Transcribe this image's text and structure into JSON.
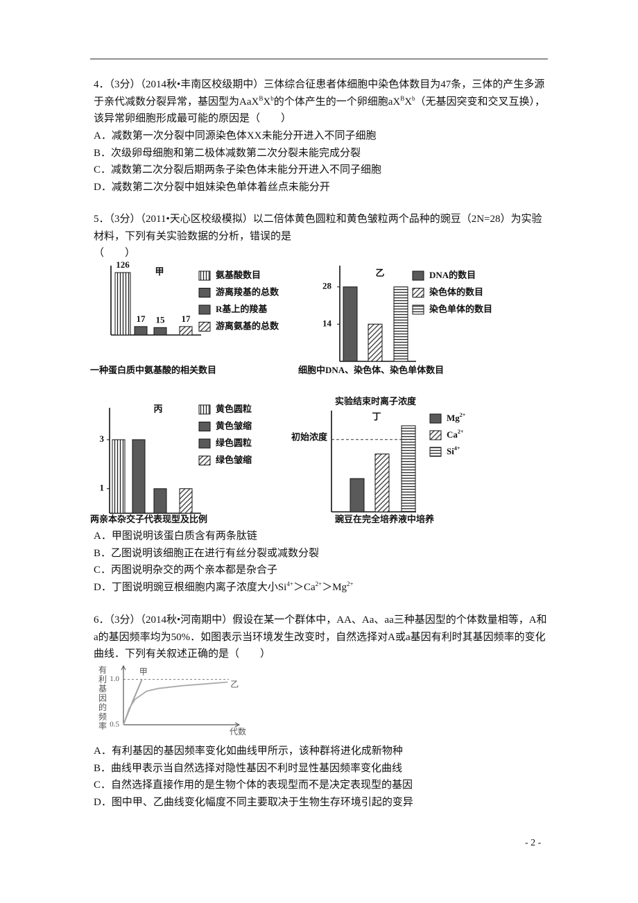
{
  "questions": [
    {
      "stem": [
        "4．（3分）（2014秋•丰南区校级期中）三体综合征患者体细胞中染色体数目为47条，三体的产生多源于亲代减数分裂异常，基因型为AaX",
        {
          "sup": "B"
        },
        "X",
        {
          "sup": "b"
        },
        "的个体产生的一个卵细胞aX",
        {
          "sup": "B"
        },
        "X",
        {
          "sup": "b"
        },
        "（无基因突变和交叉互换），该异常卵细胞形成最可能的原因是（　　）"
      ],
      "options": [
        [
          "A．减数第一次分裂中同源染色体XX未能分开进入不同子细胞"
        ],
        [
          "B．次级卵母细胞和第二极体减数第二次分裂未能完成分裂"
        ],
        [
          "C．减数第二次分裂后期两条子染色体未能分开进入不同子细胞"
        ],
        [
          "D．减数第二次分裂中姐妹染色单体着丝点未能分开"
        ]
      ]
    },
    {
      "stem": [
        "5．（3分）（2011•天心区校级模拟）以二倍体黄色圆粒和黄色皱粒两个品种的豌豆（2N=28）为实验材料，下列有关实验数据的分析，错误的是"
      ],
      "blank": "（　　）",
      "options": [
        [
          "A．甲图说明该蛋白质含有两条肽链"
        ],
        [
          "B．乙图说明该细胞正在进行有丝分裂或减数分裂"
        ],
        [
          "C．丙图说明杂交的两个亲本都是杂合子"
        ],
        [
          "D．丁图说明豌豆根细胞内离子浓度大小Si",
          {
            "sup": "4+"
          },
          "＞Ca",
          {
            "sup": "2+"
          },
          "＞Mg",
          {
            "sup": "2+"
          }
        ]
      ]
    },
    {
      "stem": [
        "6．（3分）（2014秋•河南期中）假设在某一个群体中，AA、Aa、aa三种基因型的个体数量相等，A和a的基因频率均为50%．如图表示当环境发生改变时，自然选择对A或a基因有利时其基因频率的变化曲线．下列有关叙述正确的是（　　）"
      ],
      "options": [
        [
          "A．有利基因的基因频率变化如曲线甲所示，该种群将进化成新物种"
        ],
        [
          "B．曲线甲表示当自然选择对隐性基因不利时显性基因频率变化曲线"
        ],
        [
          "C．自然选择直接作用的是生物个体的表现型而不是决定表现型的基因"
        ],
        [
          "D．图中甲、乙曲线变化幅度不同主要取决于生物生存环境引起的变异"
        ]
      ]
    }
  ],
  "chart_data": [
    {
      "type": "bar",
      "label": "甲",
      "title": "一种蛋白质中氨基酸的相关数目",
      "categories": [
        [
          "氨基酸数目"
        ],
        [
          "游离羧基的总数"
        ],
        [
          "R基上的羧基"
        ],
        [
          "游离氨基的总数"
        ]
      ],
      "values": [
        126,
        17,
        15,
        17
      ],
      "value_labels_shown": true,
      "patterns": [
        "vertical",
        "dark",
        "dark",
        "diagonal"
      ],
      "ylim": [
        0,
        140
      ]
    },
    {
      "type": "bar",
      "label": "乙",
      "title": "细胞中DNA、染色体、染色单体数目",
      "categories": [
        [
          "DNA的数目"
        ],
        [
          "染色体的数目"
        ],
        [
          "染色单体的数目"
        ]
      ],
      "values": [
        28,
        14,
        28
      ],
      "patterns": [
        "dark",
        "diagonal",
        "horizontal"
      ],
      "ylim": [
        0,
        36
      ],
      "yticks": [
        14,
        28
      ]
    },
    {
      "type": "bar",
      "label": "丙",
      "title": "两亲本杂交子代表现型及比例",
      "categories": [
        [
          "黄色圆粒"
        ],
        [
          "黄色皱缩"
        ],
        [
          "绿色圆粒"
        ],
        [
          "绿色皱缩"
        ]
      ],
      "values": [
        3,
        3,
        1,
        1
      ],
      "patterns": [
        "vertical",
        "dark",
        "dark",
        "diagonal"
      ],
      "ylim": [
        0,
        4.3
      ],
      "yticks": [
        1,
        3
      ]
    },
    {
      "type": "bar",
      "label": "丁",
      "subtitle": "实验结束时离子浓度",
      "title": "豌豆在完全培养液中培养",
      "categories": [
        [
          "Mg",
          {
            "sup": "2+"
          }
        ],
        [
          "Ca",
          {
            "sup": "2+"
          }
        ],
        [
          "Si",
          {
            "sup": "4+"
          }
        ]
      ],
      "values": [
        0.46,
        0.8,
        1.19
      ],
      "patterns": [
        "dark",
        "diagonal",
        "horizontal"
      ],
      "ylim": [
        0,
        1.4
      ],
      "reference": {
        "value": 1,
        "label": "初始浓度"
      }
    },
    {
      "type": "line",
      "y_label": "有利基因的频率",
      "x_label": "代数",
      "xlim": [
        0,
        10
      ],
      "ylim": [
        0.5,
        1.15
      ],
      "yticks": [
        0.5,
        {
          "value": 1,
          "label": "1.0"
        }
      ],
      "grid": true,
      "series": [
        {
          "name": "甲",
          "color": "#999999",
          "x": [
            0,
            0.8,
            1.6
          ],
          "values": [
            0.5,
            0.76,
            1.0
          ]
        },
        {
          "name": "乙",
          "color": "#aaaaaa",
          "x": [
            0,
            0.5,
            1,
            2,
            3,
            5,
            7,
            9
          ],
          "values": [
            0.5,
            0.68,
            0.78,
            0.87,
            0.9,
            0.93,
            0.95,
            0.97
          ]
        }
      ]
    }
  ],
  "page_number": "- 2 -"
}
